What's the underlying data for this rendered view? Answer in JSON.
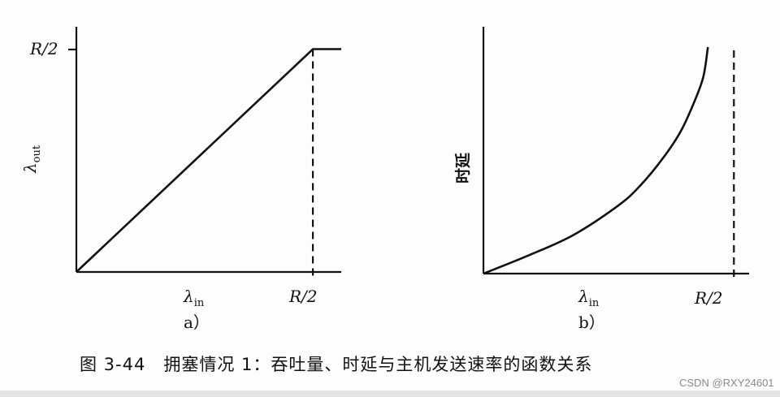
{
  "figure": {
    "caption": "图 3-44　拥塞情况 1：吞吐量、时延与主机发送速率的函数关系",
    "watermark": "CSDN @RXY24601"
  },
  "chart_data": [
    {
      "type": "line",
      "panel_label": "a）",
      "xlabel": "λin",
      "ylabel": "λout",
      "x_tick_labels": [
        "R/2"
      ],
      "y_tick_labels": [
        "R/2"
      ],
      "xlim": [
        0,
        0.56
      ],
      "ylim": [
        0,
        0.55
      ],
      "grid": false,
      "series": [
        {
          "x": [
            0,
            0.5,
            0.56
          ],
          "y": [
            0,
            0.5,
            0.5
          ],
          "style": "solid"
        }
      ],
      "reference_lines": [
        {
          "orientation": "vertical",
          "x": 0.5,
          "y_range": [
            0,
            0.5
          ],
          "style": "dashed"
        }
      ]
    },
    {
      "type": "line",
      "panel_label": "b）",
      "xlabel": "λin",
      "ylabel": "时延",
      "x_tick_labels": [
        "R/2"
      ],
      "xlim": [
        0,
        0.58
      ],
      "ylim": [
        0,
        1
      ],
      "grid": false,
      "series": [
        {
          "x": [
            0,
            0.1,
            0.2,
            0.3,
            0.35,
            0.4,
            0.44,
            0.47,
            0.49,
            0.5
          ],
          "y": [
            0.0,
            0.08,
            0.17,
            0.3,
            0.39,
            0.51,
            0.63,
            0.76,
            0.87,
            1.0
          ],
          "style": "solid"
        }
      ],
      "reference_lines": [
        {
          "orientation": "vertical",
          "x": 0.5,
          "style": "dashed"
        }
      ]
    }
  ]
}
